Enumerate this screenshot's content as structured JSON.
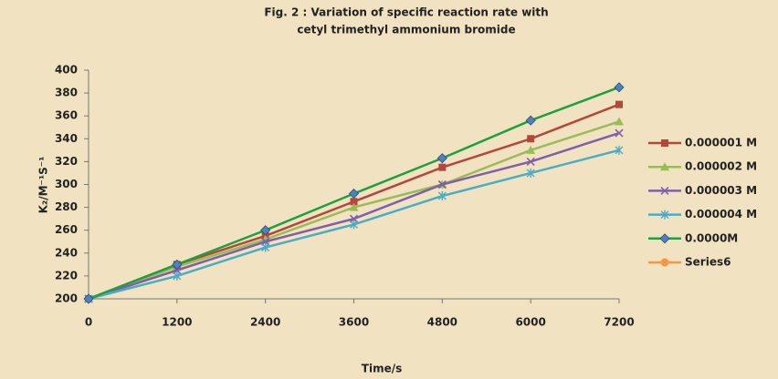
{
  "chart_data": {
    "type": "line",
    "title": [
      "Fig. 2 : Variation of specific reaction rate with",
      "cetyl trimethyl ammonium bromide"
    ],
    "xlabel": "Time/s",
    "ylabel": "K₂/M⁻¹S⁻¹",
    "x": [
      0,
      1200,
      2400,
      3600,
      4800,
      6000,
      7200
    ],
    "xlim": [
      0,
      7200
    ],
    "xticks": [
      0,
      1200,
      2400,
      3600,
      4800,
      6000,
      7200
    ],
    "ylim": [
      200,
      400
    ],
    "yticks": [
      200,
      220,
      240,
      260,
      280,
      300,
      320,
      340,
      360,
      380,
      400
    ],
    "grid": false,
    "legend": "right",
    "series": [
      {
        "name": "0.000001 M",
        "color": "#b5473a",
        "marker": "square",
        "values": [
          200,
          230,
          255,
          285,
          315,
          340,
          370
        ]
      },
      {
        "name": "0.000002 M",
        "color": "#9bbb59",
        "marker": "triangle",
        "values": [
          200,
          228,
          252,
          280,
          300,
          330,
          355
        ]
      },
      {
        "name": "0.000003 M",
        "color": "#7f5fa8",
        "marker": "x",
        "values": [
          200,
          225,
          250,
          270,
          300,
          320,
          345
        ]
      },
      {
        "name": "0.000004 M",
        "color": "#4bacc6",
        "marker": "star",
        "values": [
          200,
          220,
          245,
          265,
          290,
          310,
          330
        ]
      },
      {
        "name": "0.0000M",
        "color": "#1fa040",
        "marker_color": "#4f81bd",
        "marker": "diamond",
        "values": [
          200,
          230,
          260,
          292,
          323,
          356,
          385
        ]
      },
      {
        "name": "Series6",
        "color": "#f79646",
        "marker": "circle",
        "values": [
          null,
          null,
          null,
          null,
          null,
          null,
          null
        ]
      }
    ]
  }
}
